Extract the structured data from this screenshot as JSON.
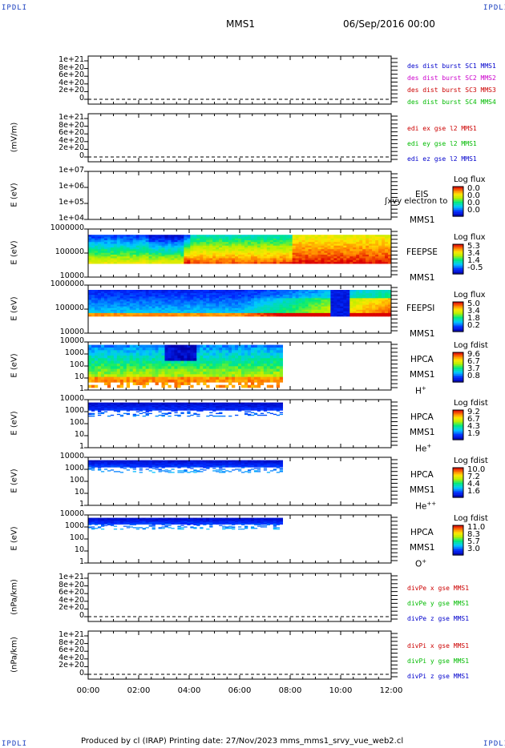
{
  "header": {
    "logo_left": "IPDLI",
    "logo_right": "IPDLI",
    "spacecraft": "MMS1",
    "date": "06/Sep/2016 00:00"
  },
  "footer": {
    "text": "Produced by cl (IRAP)   Printing date: 27/Nov/2023   mms_mms1_srvy_vue_web2.cl",
    "logo_left": "IPDLI",
    "logo_right": "IPDLI"
  },
  "time_axis": [
    "00:00",
    "02:00",
    "04:00",
    "06:00",
    "08:00",
    "10:00",
    "12:00"
  ],
  "chart_data": [
    {
      "type": "line",
      "ylabel": "",
      "yticks": [
        "1e+21",
        "8e+20",
        "6e+20",
        "4e+20",
        "2e+20",
        "0"
      ],
      "ylim": [
        0,
        1e+21
      ],
      "legend": [
        {
          "label": "des dist burst SC1 MMS1",
          "color": "#0000cc"
        },
        {
          "label": "des dist burst SC2 MMS2",
          "color": "#cc00cc"
        },
        {
          "label": "des dist burst SC3 MMS3",
          "color": "#cc0000"
        },
        {
          "label": "des dist burst SC4 MMS4",
          "color": "#00bb00"
        }
      ]
    },
    {
      "type": "line",
      "ylabel": "(mV/m)",
      "yticks": [
        "1e+21",
        "8e+20",
        "6e+20",
        "4e+20",
        "2e+20",
        "0"
      ],
      "ylim": [
        0,
        1e+21
      ],
      "legend": [
        {
          "label": "edi ex gse l2 MMS1",
          "color": "#cc0000"
        },
        {
          "label": "edi ey gse l2 MMS1",
          "color": "#00bb00"
        },
        {
          "label": "edi ez gse l2 MMS1",
          "color": "#0000cc"
        }
      ]
    },
    {
      "type": "heatmap",
      "ylabel": "E (eV)",
      "yticks": [
        "1e+07",
        "1e+06",
        "1e+05",
        "1e+04"
      ],
      "side_labels": [
        "EIS",
        "MMS1"
      ],
      "overlay_text": "ʃxvy electron to",
      "colorbar_title": "Log flux",
      "colorbar_values": [
        "0.0",
        "0.0",
        "0.0",
        "0.0"
      ]
    },
    {
      "type": "heatmap",
      "ylabel": "E (eV)",
      "yticks": [
        "1000000",
        "100000",
        "10000"
      ],
      "side_labels": [
        "FEEPSE",
        "MMS1"
      ],
      "colorbar_title": "Log flux",
      "colorbar_values": [
        "5.3",
        "3.4",
        "1.4",
        "-0.5"
      ]
    },
    {
      "type": "heatmap",
      "ylabel": "E (eV)",
      "yticks": [
        "1000000",
        "100000",
        "10000"
      ],
      "side_labels": [
        "FEEPSI",
        "MMS1"
      ],
      "colorbar_title": "Log flux",
      "colorbar_values": [
        "5.0",
        "3.4",
        "1.8",
        "0.2"
      ]
    },
    {
      "type": "heatmap",
      "ylabel": "E (eV)",
      "yticks": [
        "10000",
        "1000",
        "100",
        "10",
        "1"
      ],
      "side_labels": [
        "HPCA",
        "MMS1"
      ],
      "species": "H",
      "charge": "+",
      "colorbar_title": "Log fdist",
      "colorbar_values": [
        "9.6",
        "6.7",
        "3.7",
        "0.8"
      ]
    },
    {
      "type": "heatmap",
      "ylabel": "E (eV)",
      "yticks": [
        "10000",
        "1000",
        "100",
        "10",
        "1"
      ],
      "side_labels": [
        "HPCA",
        "MMS1"
      ],
      "species": "He",
      "charge": "+",
      "colorbar_title": "Log fdist",
      "colorbar_values": [
        "9.2",
        "6.7",
        "4.3",
        "1.9"
      ]
    },
    {
      "type": "heatmap",
      "ylabel": "E (eV)",
      "yticks": [
        "10000",
        "1000",
        "100",
        "10",
        "1"
      ],
      "side_labels": [
        "HPCA",
        "MMS1"
      ],
      "species": "He",
      "charge": "++",
      "colorbar_title": "Log fdist",
      "colorbar_values": [
        "10.0",
        "7.2",
        "4.4",
        "1.6"
      ]
    },
    {
      "type": "heatmap",
      "ylabel": "E (eV)",
      "yticks": [
        "10000",
        "1000",
        "100",
        "10",
        "1"
      ],
      "side_labels": [
        "HPCA",
        "MMS1"
      ],
      "species": "O",
      "charge": "+",
      "colorbar_title": "Log fdist",
      "colorbar_values": [
        "11.0",
        "8.3",
        "5.7",
        "3.0"
      ]
    },
    {
      "type": "line",
      "ylabel": "(nPa/km)",
      "yticks": [
        "1e+21",
        "8e+20",
        "6e+20",
        "4e+20",
        "2e+20",
        "0"
      ],
      "ylim": [
        0,
        1e+21
      ],
      "legend": [
        {
          "label": "divPe x gse MMS1",
          "color": "#cc0000"
        },
        {
          "label": "divPe y gse MMS1",
          "color": "#00bb00"
        },
        {
          "label": "divPe z gse MMS1",
          "color": "#0000cc"
        }
      ]
    },
    {
      "type": "line",
      "ylabel": "(nPa/km)",
      "yticks": [
        "1e+21",
        "8e+20",
        "6e+20",
        "4e+20",
        "2e+20",
        "0"
      ],
      "ylim": [
        0,
        1e+21
      ],
      "legend": [
        {
          "label": "divPi x gse MMS1",
          "color": "#cc0000"
        },
        {
          "label": "divPi y gse MMS1",
          "color": "#00bb00"
        },
        {
          "label": "divPi z gse MMS1",
          "color": "#0000cc"
        }
      ]
    }
  ]
}
